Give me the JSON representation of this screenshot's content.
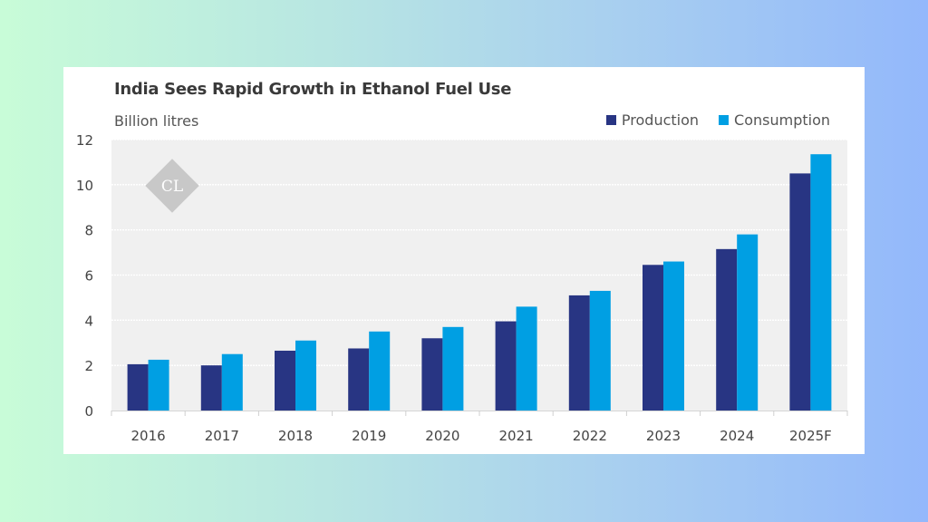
{
  "chart_data": {
    "type": "bar",
    "title": "India Sees Rapid Growth in Ethanol Fuel Use",
    "ylabel": "Billion litres",
    "xlabel": "",
    "ylim": [
      0,
      12
    ],
    "yticks": [
      0,
      2,
      4,
      6,
      8,
      10,
      12
    ],
    "grid": true,
    "legend_position": "top-right",
    "categories": [
      "2016",
      "2017",
      "2018",
      "2019",
      "2020",
      "2021",
      "2022",
      "2023",
      "2024",
      "2025F"
    ],
    "series": [
      {
        "name": "Production",
        "color": "#283583",
        "values": [
          2.05,
          2.0,
          2.65,
          2.75,
          3.2,
          3.95,
          5.1,
          6.45,
          7.15,
          10.5
        ]
      },
      {
        "name": "Consumption",
        "color": "#009fe3",
        "values": [
          2.25,
          2.5,
          3.1,
          3.5,
          3.7,
          4.6,
          5.3,
          6.6,
          7.8,
          11.35
        ]
      }
    ],
    "watermark": "CL"
  }
}
